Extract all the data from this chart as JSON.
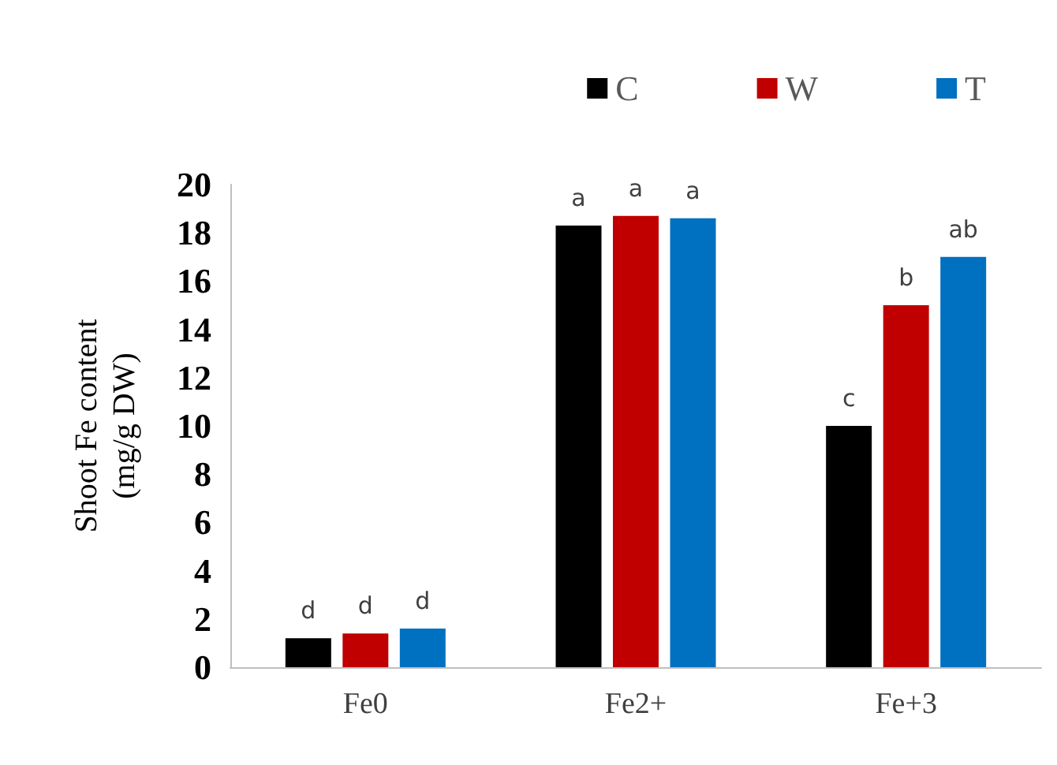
{
  "chart_data": {
    "type": "bar",
    "ylabel": "Shoot Fe content\n(mg/g DW)",
    "categories": [
      "Fe0",
      "Fe2+",
      "Fe+3"
    ],
    "series": [
      {
        "name": "C",
        "color": "#000000",
        "values": [
          1.2,
          18.3,
          10.0
        ],
        "value_labels": [
          "d",
          "a",
          "c"
        ]
      },
      {
        "name": "W",
        "color": "#c00000",
        "values": [
          1.4,
          18.7,
          15.0
        ],
        "value_labels": [
          "d",
          "a",
          "b"
        ]
      },
      {
        "name": "T",
        "color": "#0070c0",
        "values": [
          1.6,
          18.6,
          17.0
        ],
        "value_labels": [
          "d",
          "a",
          "ab"
        ]
      }
    ],
    "ylim": [
      0,
      20
    ],
    "yticks": [
      0,
      2,
      4,
      6,
      8,
      10,
      12,
      14,
      16,
      18,
      20
    ],
    "grid": false,
    "legend": "top right"
  }
}
